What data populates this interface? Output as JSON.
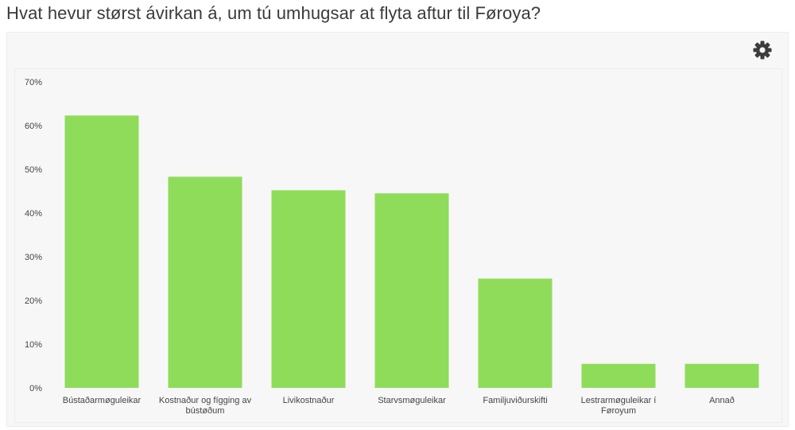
{
  "title": "Hvat hevur størst ávirkan á, um tú umhugsar at flyta aftur til Føroya?",
  "toolbar": {
    "settings_icon": "gear-icon"
  },
  "colors": {
    "bar": "#8fdc5a",
    "panel_bg": "#f7f7f7",
    "text": "#3a3a3a"
  },
  "chart_data": {
    "type": "bar",
    "title": "",
    "xlabel": "",
    "ylabel": "",
    "ylim": [
      0,
      70
    ],
    "y_ticks": [
      "0%",
      "10%",
      "20%",
      "30%",
      "40%",
      "50%",
      "60%",
      "70%"
    ],
    "y_tick_values": [
      0,
      10,
      20,
      30,
      40,
      50,
      60,
      70
    ],
    "categories": [
      [
        "Bústaðarmøguleikar"
      ],
      [
        "Kostnaður og fígging av",
        "bústøðum"
      ],
      [
        "Livikostnaður"
      ],
      [
        "Starvsmøguleikar"
      ],
      [
        "Familjuviðurskifti"
      ],
      [
        "Lestrarmøguleikar í",
        "Føroyum"
      ],
      [
        "Annað"
      ]
    ],
    "values": [
      62.3,
      48.3,
      45.2,
      44.5,
      25.0,
      5.5,
      5.5
    ],
    "grid": false,
    "legend": "none"
  }
}
